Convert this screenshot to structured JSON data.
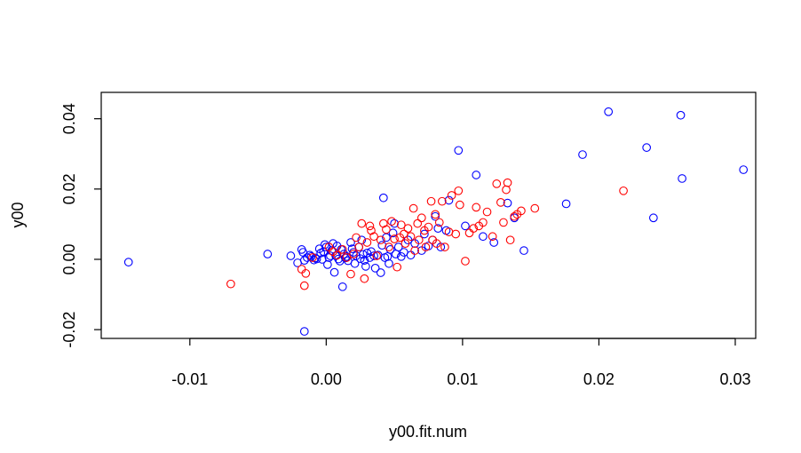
{
  "chart_data": {
    "type": "scatter",
    "title": "",
    "xlabel": "y00.fit.num",
    "ylabel": "y00",
    "xlim": [
      -0.0165,
      0.0315
    ],
    "ylim": [
      -0.0225,
      0.0475
    ],
    "x_ticks": [
      -0.01,
      0.0,
      0.01,
      0.02,
      0.03
    ],
    "x_tick_labels": [
      "-0.01",
      "0.00",
      "0.01",
      "0.02",
      "0.03"
    ],
    "y_ticks": [
      -0.02,
      0.0,
      0.02,
      0.04
    ],
    "y_tick_labels": [
      "-0.02",
      "0.00",
      "0.02",
      "0.04"
    ],
    "grid": false,
    "legend": "none",
    "series": [
      {
        "color": "#0000ff",
        "marker": "open-circle",
        "x": [
          -0.0145,
          -0.0043,
          -0.0026,
          -0.0021,
          -0.0018,
          -0.0017,
          -0.0016,
          -0.0014,
          -0.0012,
          -0.0011,
          -0.0009,
          -0.0008,
          -0.0007,
          -0.0005,
          -0.0004,
          -0.0003,
          -0.0002,
          -0.0001,
          0.0,
          0.0001,
          0.0002,
          0.0003,
          0.0004,
          0.0005,
          0.0006,
          0.0007,
          0.0008,
          0.0009,
          0.001,
          0.0011,
          0.0012,
          0.0013,
          0.0014,
          0.0015,
          0.0016,
          0.0018,
          0.0019,
          0.002,
          0.0021,
          0.0022,
          0.0024,
          0.0025,
          0.0026,
          0.0027,
          0.0028,
          0.0029,
          0.003,
          0.0032,
          0.0033,
          0.0035,
          0.0036,
          0.0038,
          0.004,
          0.0041,
          0.0042,
          0.0043,
          0.0044,
          0.0045,
          0.0046,
          0.0047,
          0.0049,
          0.005,
          0.0051,
          0.0053,
          0.0055,
          0.0057,
          0.006,
          0.0062,
          0.0065,
          0.007,
          0.0072,
          0.0075,
          0.0078,
          0.008,
          0.0082,
          0.0084,
          0.0088,
          0.009,
          0.0097,
          0.0102,
          0.011,
          0.0115,
          0.0123,
          0.0133,
          0.0138,
          0.0145,
          0.0176,
          0.0188,
          0.0207,
          0.0235,
          0.024,
          0.026,
          0.0261,
          0.0306,
          -0.0016
        ],
        "y": [
          -0.0008,
          0.0015,
          0.001,
          -0.001,
          0.0028,
          0.002,
          -0.0003,
          0.0005,
          0.0012,
          0.0008,
          -0.0002,
          0.0004,
          0.0001,
          0.003,
          0.0018,
          0.0,
          0.0022,
          0.0042,
          0.0035,
          -0.0015,
          0.0005,
          0.001,
          0.0025,
          0.0045,
          -0.0037,
          0.001,
          0.0038,
          0.0001,
          -0.0005,
          0.0028,
          -0.0078,
          0.0015,
          0.0004,
          0.0008,
          -0.0004,
          0.0048,
          0.003,
          0.002,
          -0.0012,
          0.001,
          0.0035,
          0.0002,
          0.0055,
          0.0014,
          -0.0003,
          -0.002,
          0.0018,
          0.0005,
          0.0022,
          0.001,
          -0.0025,
          0.0012,
          -0.0038,
          0.004,
          0.0175,
          0.0005,
          0.0062,
          0.0008,
          -0.0012,
          0.0028,
          0.0075,
          0.0102,
          0.0015,
          0.0035,
          0.0008,
          0.002,
          0.0055,
          0.0012,
          0.0045,
          0.0025,
          0.0072,
          0.0038,
          0.0055,
          0.0122,
          0.0088,
          0.0035,
          0.0082,
          0.0168,
          0.031,
          0.0095,
          0.024,
          0.0065,
          0.0048,
          0.016,
          0.0118,
          0.0025,
          0.0158,
          0.0298,
          0.042,
          0.0318,
          0.0118,
          0.041,
          0.023,
          0.0255,
          -0.0205
        ]
      },
      {
        "color": "#ff0000",
        "marker": "open-circle",
        "x": [
          -0.007,
          -0.0018,
          -0.0016,
          -0.0015,
          -0.001,
          0.0002,
          0.0005,
          0.0008,
          0.0012,
          0.0015,
          0.0018,
          0.002,
          0.0022,
          0.0024,
          0.0026,
          0.0028,
          0.003,
          0.0032,
          0.0033,
          0.0035,
          0.0037,
          0.004,
          0.0042,
          0.0044,
          0.0046,
          0.0048,
          0.005,
          0.0052,
          0.0054,
          0.0055,
          0.0057,
          0.0058,
          0.006,
          0.0062,
          0.0064,
          0.0065,
          0.0067,
          0.0068,
          0.007,
          0.0072,
          0.0073,
          0.0075,
          0.0077,
          0.0078,
          0.008,
          0.0081,
          0.0083,
          0.0085,
          0.0087,
          0.009,
          0.0092,
          0.0095,
          0.0097,
          0.0098,
          0.0102,
          0.0105,
          0.0108,
          0.011,
          0.0112,
          0.0115,
          0.0118,
          0.0122,
          0.0125,
          0.0128,
          0.013,
          0.0132,
          0.0133,
          0.0135,
          0.0138,
          0.014,
          0.0143,
          0.0153,
          0.0218
        ],
        "y": [
          -0.007,
          -0.0028,
          -0.0075,
          -0.004,
          0.0005,
          0.0035,
          0.0022,
          0.0012,
          0.0028,
          0.0005,
          -0.0042,
          0.0015,
          0.0062,
          0.0035,
          0.0102,
          -0.0055,
          0.0048,
          0.0095,
          0.0082,
          0.0065,
          0.001,
          0.0055,
          0.0102,
          0.0085,
          0.0035,
          0.0108,
          0.0058,
          -0.0022,
          0.0062,
          0.0098,
          0.0072,
          0.0045,
          0.0088,
          0.0065,
          0.0145,
          0.0025,
          0.0102,
          0.0055,
          0.0118,
          0.0082,
          0.0035,
          0.0092,
          0.0165,
          0.0055,
          0.0128,
          0.0045,
          0.0105,
          0.0165,
          0.0035,
          0.0078,
          0.0182,
          0.0072,
          0.0195,
          0.0155,
          -0.0005,
          0.0075,
          0.0088,
          0.0148,
          0.0095,
          0.0105,
          0.0135,
          0.0065,
          0.0215,
          0.0162,
          0.0105,
          0.0198,
          0.0218,
          0.0055,
          0.0122,
          0.0128,
          0.0138,
          0.0145,
          0.0195
        ]
      }
    ]
  }
}
